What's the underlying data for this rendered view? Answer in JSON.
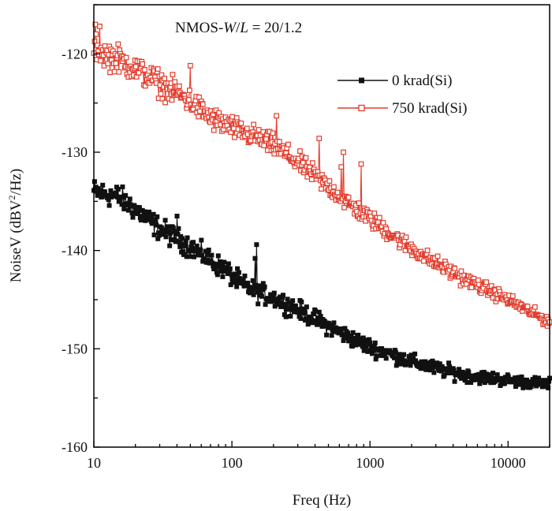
{
  "chart_data": {
    "type": "line",
    "annotation_prefix": "NMOS-",
    "annotation_italic": "W",
    "annotation_slash": "/",
    "annotation_italic2": "L",
    "annotation_suffix": " = 20/1.2",
    "xlabel": "Freq (Hz)",
    "ylabel_prefix": "NoiseV (dBV",
    "ylabel_sup": "2",
    "ylabel_suffix": "/Hz)",
    "x_scale": "log",
    "xlim": [
      10,
      20000
    ],
    "ylim": [
      -160,
      -115
    ],
    "x_ticks": [
      10,
      100,
      1000,
      10000
    ],
    "x_tick_labels": [
      "10",
      "100",
      "1000",
      "10000"
    ],
    "y_ticks": [
      -160,
      -150,
      -140,
      -130,
      -120
    ],
    "y_tick_labels": [
      "-160",
      "-150",
      "-140",
      "-130",
      "-120"
    ],
    "grid": false,
    "legend_position": "top-right",
    "series": [
      {
        "name": "0 krad(Si)",
        "color": "#111111",
        "marker": "filled-square",
        "anchors": [
          [
            10,
            -134.0
          ],
          [
            15,
            -134.5
          ],
          [
            20,
            -135.8
          ],
          [
            30,
            -137.8
          ],
          [
            50,
            -139.6
          ],
          [
            70,
            -141.0
          ],
          [
            90,
            -142.0
          ],
          [
            100,
            -142.6
          ],
          [
            120,
            -143.5
          ],
          [
            150,
            -144.2
          ],
          [
            200,
            -144.8
          ],
          [
            300,
            -146.0
          ],
          [
            500,
            -147.7
          ],
          [
            700,
            -148.8
          ],
          [
            1000,
            -149.8
          ],
          [
            2000,
            -151.3
          ],
          [
            3000,
            -152.0
          ],
          [
            5000,
            -152.7
          ],
          [
            10000,
            -153.2
          ],
          [
            20000,
            -153.6
          ]
        ],
        "noise": [
          1.1,
          0.5
        ],
        "spikes": [
          [
            150,
            -139.4
          ],
          [
            148,
            -140.8
          ],
          [
            40,
            -136.5
          ]
        ]
      },
      {
        "name": "750 krad(Si)",
        "color": "#e23c2c",
        "marker": "open-square",
        "anchors": [
          [
            10,
            -119.0
          ],
          [
            12,
            -120.0
          ],
          [
            15,
            -120.5
          ],
          [
            20,
            -121.5
          ],
          [
            30,
            -123.0
          ],
          [
            50,
            -124.8
          ],
          [
            70,
            -126.5
          ],
          [
            100,
            -127.5
          ],
          [
            150,
            -128.5
          ],
          [
            200,
            -129.3
          ],
          [
            300,
            -131.0
          ],
          [
            500,
            -133.5
          ],
          [
            700,
            -135.2
          ],
          [
            1000,
            -136.8
          ],
          [
            2000,
            -139.8
          ],
          [
            3000,
            -141.3
          ],
          [
            5000,
            -143.0
          ],
          [
            10000,
            -145.0
          ],
          [
            20000,
            -147.3
          ]
        ],
        "noise": [
          1.3,
          0.5
        ],
        "spikes": [
          [
            10.3,
            -117.0
          ],
          [
            11,
            -117.2
          ],
          [
            50,
            -121.2
          ],
          [
            210,
            -126.3
          ],
          [
            430,
            -128.6
          ],
          [
            640,
            -130.0
          ],
          [
            860,
            -131.2
          ],
          [
            620,
            -131.5
          ]
        ]
      }
    ]
  }
}
